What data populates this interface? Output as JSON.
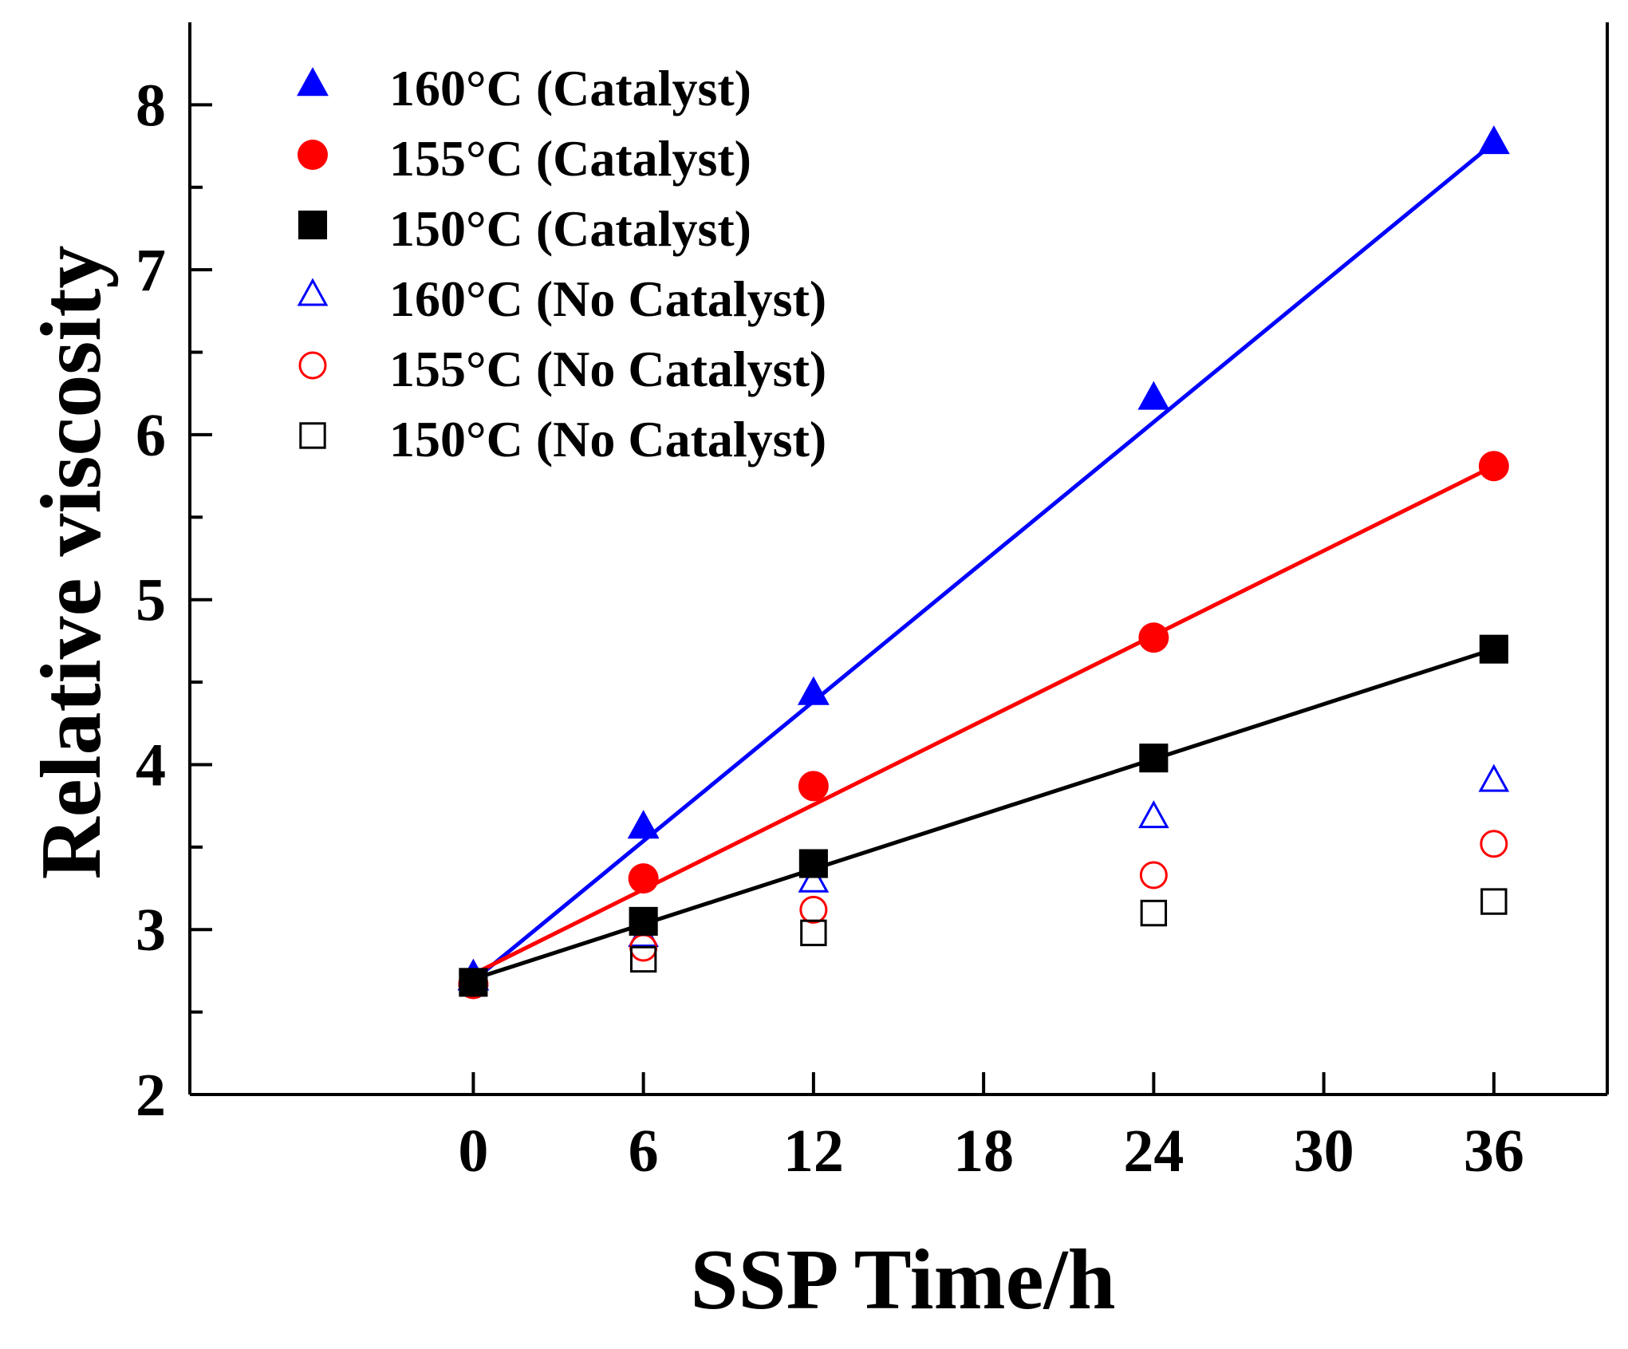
{
  "chart_data": {
    "type": "scatter",
    "title": "",
    "xlabel": "SSP Time/h",
    "ylabel": "Relative viscosity",
    "xlim": [
      -10,
      40
    ],
    "ylim": [
      2,
      8.5
    ],
    "xticks": [
      0,
      6,
      12,
      18,
      24,
      30,
      36
    ],
    "yticks": [
      2,
      3,
      4,
      5,
      6,
      7,
      8
    ],
    "grid": false,
    "legend_position": "top-left",
    "series": [
      {
        "name": "160°C (Catalyst)",
        "marker": "triangle",
        "filled": true,
        "color": "#0000ff",
        "x": [
          0,
          6,
          12,
          24,
          36
        ],
        "y": [
          2.7,
          3.62,
          4.43,
          6.22,
          7.77
        ],
        "fit": {
          "x": [
            0,
            36
          ],
          "y": [
            2.69,
            7.77
          ]
        }
      },
      {
        "name": "155°C (Catalyst)",
        "marker": "circle",
        "filled": true,
        "color": "#ff0000",
        "x": [
          0,
          6,
          12,
          24,
          36
        ],
        "y": [
          2.67,
          3.31,
          3.87,
          4.77,
          5.81
        ],
        "fit": {
          "x": [
            0,
            36
          ],
          "y": [
            2.73,
            5.81
          ]
        }
      },
      {
        "name": "150°C (Catalyst)",
        "marker": "square",
        "filled": true,
        "color": "#000000",
        "x": [
          0,
          6,
          12,
          24,
          36
        ],
        "y": [
          2.68,
          3.05,
          3.4,
          4.04,
          4.7
        ],
        "fit": {
          "x": [
            0,
            36
          ],
          "y": [
            2.7,
            4.7
          ]
        }
      },
      {
        "name": "160°C (No Catalyst)",
        "marker": "triangle",
        "filled": false,
        "color": "#0000ff",
        "x": [
          0,
          6,
          12,
          24,
          36
        ],
        "y": [
          2.72,
          2.96,
          3.29,
          3.68,
          3.9
        ]
      },
      {
        "name": "155°C (No Catalyst)",
        "marker": "circle",
        "filled": false,
        "color": "#ff0000",
        "x": [
          0,
          6,
          12,
          24,
          36
        ],
        "y": [
          2.67,
          2.89,
          3.12,
          3.33,
          3.52
        ]
      },
      {
        "name": "150°C (No Catalyst)",
        "marker": "square",
        "filled": false,
        "color": "#000000",
        "x": [
          0,
          6,
          12,
          24,
          36
        ],
        "y": [
          2.68,
          2.82,
          2.98,
          3.1,
          3.17
        ]
      }
    ]
  }
}
